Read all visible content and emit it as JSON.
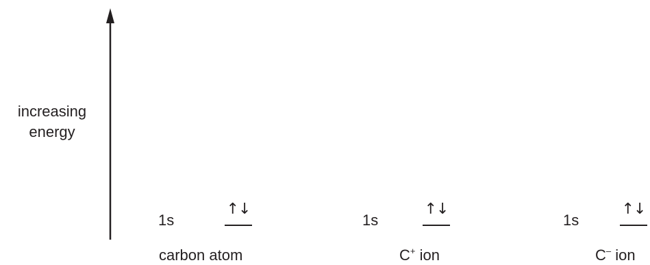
{
  "axis": {
    "label_line1": "increasing",
    "label_line2": "energy"
  },
  "columns": [
    {
      "orbital": "1s",
      "electrons": "↑↓",
      "species_base": "carbon atom",
      "species_charge": ""
    },
    {
      "orbital": "1s",
      "electrons": "↑↓",
      "species_base": "C",
      "species_charge": "+",
      "species_suffix": " ion"
    },
    {
      "orbital": "1s",
      "electrons": "↑↓",
      "species_base": "C",
      "species_charge": "–",
      "species_suffix": " ion"
    }
  ],
  "colors": {
    "ink": "#231f20",
    "background": "#ffffff"
  }
}
